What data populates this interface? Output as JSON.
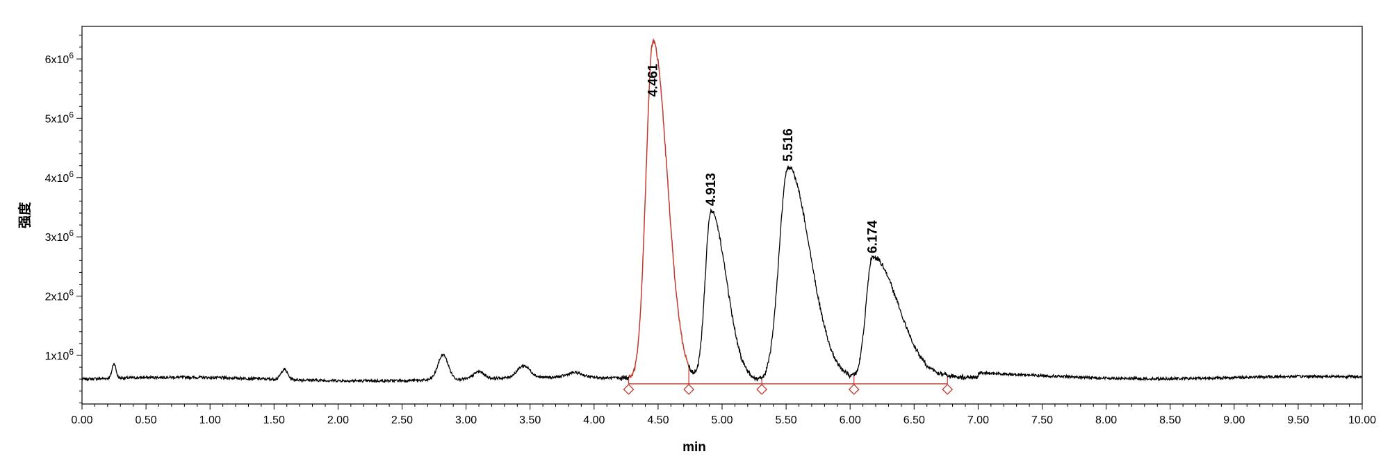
{
  "chart_data": {
    "type": "line",
    "xlabel": "min",
    "ylabel": "强度",
    "xlim": [
      0,
      10
    ],
    "ylim": [
      180000,
      6550000
    ],
    "x_ticks": [
      "0.00",
      "0.50",
      "1.00",
      "1.50",
      "2.00",
      "2.50",
      "3.00",
      "3.50",
      "4.00",
      "4.50",
      "5.00",
      "5.50",
      "6.00",
      "6.50",
      "7.00",
      "7.50",
      "8.00",
      "8.50",
      "9.00",
      "9.50",
      "10.00"
    ],
    "y_ticks": [
      {
        "value": 1000000,
        "mantissa": "1",
        "base": "x10",
        "exp": "6"
      },
      {
        "value": 2000000,
        "mantissa": "2",
        "base": "x10",
        "exp": "6"
      },
      {
        "value": 3000000,
        "mantissa": "3",
        "base": "x10",
        "exp": "6"
      },
      {
        "value": 4000000,
        "mantissa": "4",
        "base": "x10",
        "exp": "6"
      },
      {
        "value": 5000000,
        "mantissa": "5",
        "base": "x10",
        "exp": "6"
      },
      {
        "value": 6000000,
        "mantissa": "6",
        "base": "x10",
        "exp": "6"
      }
    ],
    "grid": false,
    "baseline": 600000,
    "bumps": [
      {
        "x": 0.25,
        "h": 250000,
        "w": 0.015
      },
      {
        "x": 1.58,
        "h": 170000,
        "w": 0.025
      },
      {
        "x": 2.82,
        "h": 420000,
        "w": 0.04
      },
      {
        "x": 3.1,
        "h": 120000,
        "w": 0.04
      },
      {
        "x": 3.45,
        "h": 200000,
        "w": 0.05
      },
      {
        "x": 3.85,
        "h": 80000,
        "w": 0.06
      }
    ],
    "peaks": [
      {
        "label": "4.461",
        "rt": 4.461,
        "apex": 6300000,
        "w1": 0.055,
        "w2": 0.11,
        "color": "#c0392b"
      },
      {
        "label": "4.913",
        "rt": 4.913,
        "apex": 3450000,
        "w1": 0.045,
        "w2": 0.12,
        "color": "#000000"
      },
      {
        "label": "5.516",
        "rt": 5.516,
        "apex": 4200000,
        "w1": 0.07,
        "w2": 0.17,
        "color": "#000000"
      },
      {
        "label": "6.174",
        "rt": 6.174,
        "apex": 2650000,
        "w1": 0.05,
        "w2": 0.2,
        "color": "#000000"
      }
    ],
    "integration_markers": [
      4.27,
      4.74,
      5.31,
      6.03,
      6.76
    ],
    "integration_level": 520000,
    "colors": {
      "trace": "#000000",
      "integration": "#c0392b"
    }
  }
}
